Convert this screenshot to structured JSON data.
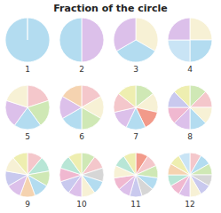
{
  "title": "Fraction of the circle",
  "chart_data": [
    {
      "type": "pie",
      "title": "1",
      "values": [
        1
      ],
      "colors": [
        "#b3dcf0"
      ]
    },
    {
      "type": "pie",
      "title": "2",
      "values": [
        1,
        1
      ],
      "colors": [
        "#dcc0ea",
        "#b3dcf0"
      ]
    },
    {
      "type": "pie",
      "title": "3",
      "values": [
        1,
        1,
        1
      ],
      "colors": [
        "#f7f1d5",
        "#b3dcf0",
        "#dcc0ea"
      ]
    },
    {
      "type": "pie",
      "title": "4",
      "values": [
        1,
        1,
        1,
        1
      ],
      "colors": [
        "#f7f1d5",
        "#b3dcf0",
        "#c9e4f5",
        "#dcc0ea"
      ]
    },
    {
      "type": "pie",
      "title": "5",
      "values": [
        1,
        1,
        1,
        1,
        1
      ],
      "colors": [
        "#f4c7cb",
        "#cfe8b5",
        "#b3dcf0",
        "#dcc0ea",
        "#f7f1d5"
      ]
    },
    {
      "type": "pie",
      "title": "6",
      "values": [
        1,
        1,
        1,
        1,
        1,
        1
      ],
      "colors": [
        "#f4c7cb",
        "#f7f1d5",
        "#cfe8b5",
        "#b3dcf0",
        "#dcc0ea",
        "#f5d3b0"
      ]
    },
    {
      "type": "pie",
      "title": "7",
      "values": [
        1,
        1,
        1,
        1,
        1,
        1,
        1
      ],
      "colors": [
        "#cfe8b5",
        "#f7f1d5",
        "#f29a8a",
        "#b3dcf0",
        "#dcc0ea",
        "#f4c7cb",
        "#eeeeb0"
      ]
    },
    {
      "type": "pie",
      "title": "8",
      "values": [
        1,
        1,
        1,
        1,
        1,
        1,
        1,
        1
      ],
      "colors": [
        "#cfe8b5",
        "#f4c7cb",
        "#f7f1d5",
        "#b3dcf0",
        "#dcc0ea",
        "#f0b8d0",
        "#c9c9ee",
        "#eeeeb0"
      ]
    },
    {
      "type": "pie",
      "title": "9",
      "values": [
        1,
        1,
        1,
        1,
        1,
        1,
        1,
        1,
        1
      ],
      "colors": [
        "#f4c7cb",
        "#b8e6d6",
        "#cfe8b5",
        "#b3dcf0",
        "#f5d3b0",
        "#dcc0ea",
        "#c9c9ee",
        "#f7f1d5",
        "#eeeeb0"
      ]
    },
    {
      "type": "pie",
      "title": "10",
      "values": [
        1,
        1,
        1,
        1,
        1,
        1,
        1,
        1,
        1,
        1
      ],
      "colors": [
        "#cfe8b5",
        "#f4c7cb",
        "#d6d6d6",
        "#b3dcf0",
        "#f7f1d5",
        "#dcc0ea",
        "#c9c9ee",
        "#f0b8d0",
        "#b8e6d6",
        "#eeeeb0"
      ]
    },
    {
      "type": "pie",
      "title": "11",
      "values": [
        1,
        1,
        1,
        1,
        1,
        1,
        1,
        1,
        1,
        1,
        1
      ],
      "colors": [
        "#f29a8a",
        "#f4c7cb",
        "#cfe8b5",
        "#b3dcf0",
        "#d6d6d6",
        "#c9c9ee",
        "#dcc0ea",
        "#f0b8d0",
        "#f7f1d5",
        "#b8e6d6",
        "#eeeeb0"
      ]
    },
    {
      "type": "pie",
      "title": "12",
      "values": [
        1,
        1,
        1,
        1,
        1,
        1,
        1,
        1,
        1,
        1,
        1,
        1
      ],
      "colors": [
        "#f4c7cb",
        "#b3dcf0",
        "#cfe8b5",
        "#d6d6d6",
        "#c9c9ee",
        "#f7f1d5",
        "#dcc0ea",
        "#f0b8d0",
        "#b8e6d6",
        "#f5d3b0",
        "#eeeeb0",
        "#c9e4f5"
      ]
    }
  ]
}
